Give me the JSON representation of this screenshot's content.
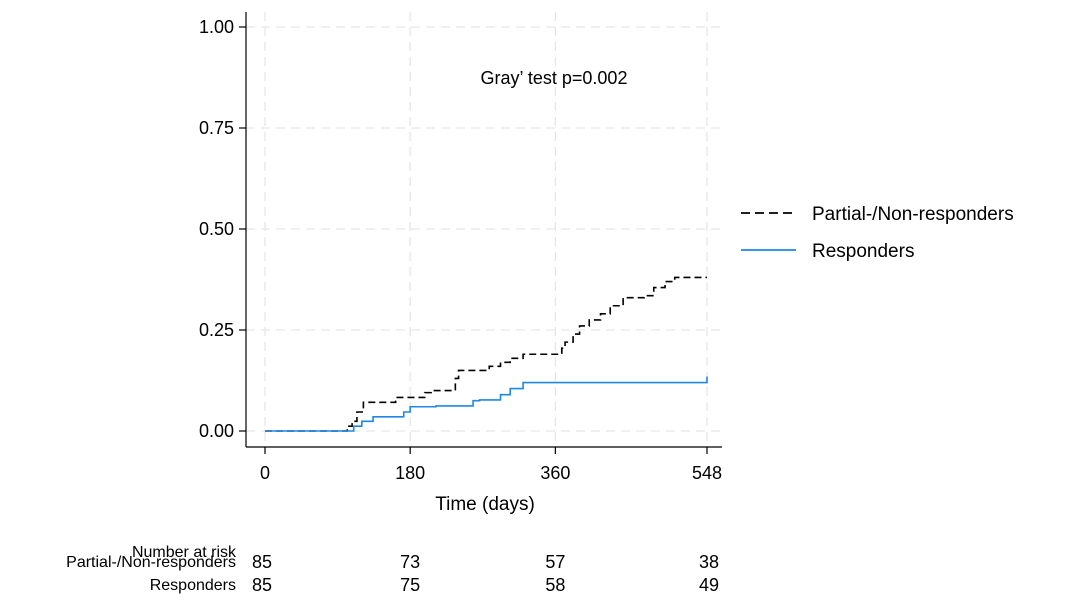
{
  "chart_data": {
    "type": "line",
    "title": "",
    "xlabel": "Time (days)",
    "ylabel": "",
    "xlim": [
      0,
      548
    ],
    "ylim": [
      0,
      1
    ],
    "xticks": [
      0,
      180,
      360,
      548
    ],
    "yticks": [
      0.0,
      0.25,
      0.5,
      0.75,
      1.0
    ],
    "ytick_labels": [
      "0.00",
      "0.25",
      "0.50",
      "0.75",
      "1.00"
    ],
    "grid": true,
    "legend_position": "right",
    "annotation": "Gray’ test p=0.002",
    "series": [
      {
        "name": "Partial-/Non-responders",
        "color": "#000000",
        "dash": "dashed",
        "x": [
          0,
          98,
          102,
          108,
          114,
          122,
          162,
          198,
          206,
          236,
          240,
          278,
          292,
          304,
          320,
          342,
          368,
          372,
          382,
          390,
          402,
          416,
          428,
          444,
          470,
          482,
          496,
          508,
          548
        ],
        "y": [
          0,
          0,
          0.012,
          0.024,
          0.047,
          0.071,
          0.083,
          0.095,
          0.1,
          0.13,
          0.15,
          0.16,
          0.17,
          0.18,
          0.19,
          0.19,
          0.205,
          0.22,
          0.24,
          0.26,
          0.275,
          0.29,
          0.31,
          0.33,
          0.335,
          0.355,
          0.37,
          0.38,
          0.38
        ]
      },
      {
        "name": "Responders",
        "color": "#1e88e5",
        "dash": "solid",
        "x": [
          0,
          98,
          110,
          120,
          134,
          172,
          180,
          212,
          258,
          266,
          292,
          304,
          320,
          546,
          548
        ],
        "y": [
          0,
          0,
          0.012,
          0.024,
          0.035,
          0.047,
          0.06,
          0.062,
          0.075,
          0.077,
          0.09,
          0.105,
          0.12,
          0.12,
          0.135
        ]
      }
    ],
    "risk_table": {
      "title": "Number at risk",
      "times": [
        0,
        180,
        360,
        548
      ],
      "rows": [
        {
          "group": "Partial-/Non-responders",
          "values": [
            "85",
            "73",
            "57",
            "38"
          ]
        },
        {
          "group": "Responders",
          "values": [
            "85",
            "75",
            "58",
            "49"
          ]
        }
      ]
    }
  }
}
